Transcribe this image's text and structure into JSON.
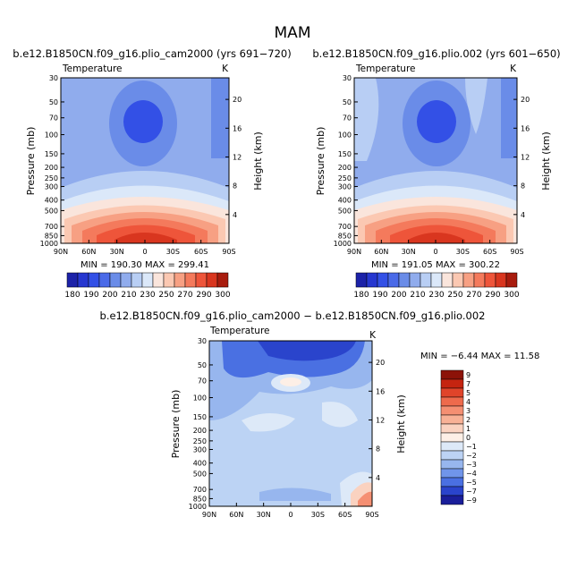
{
  "figure": {
    "title": "MAM"
  },
  "chart_data": [
    {
      "type": "heatmap",
      "title": "b.e12.B1850CN.f09_g16.plio_cam2000 (yrs 691−720)",
      "subtitle": "Temperature",
      "units": "K",
      "ylabel": "Pressure (mb)",
      "ylabel_right": "Height (km)",
      "x_ticks": [
        "90N",
        "60N",
        "30N",
        "0",
        "30S",
        "60S",
        "90S"
      ],
      "y_ticks": [
        "30",
        "50",
        "70",
        "100",
        "150",
        "200",
        "250",
        "300",
        "400",
        "500",
        "700",
        "850",
        "1000"
      ],
      "y_ticks_right": [
        "20",
        "16",
        "12",
        "8",
        "4"
      ],
      "stats": "MIN = 190.30   MAX = 299.41",
      "colorbar_labels": [
        "180",
        "190",
        "200",
        "210",
        "230",
        "250",
        "270",
        "290",
        "300"
      ],
      "colorbar_colors": [
        "#1c22a8",
        "#2637d0",
        "#3350e6",
        "#4a6ae8",
        "#6a8ce8",
        "#90aced",
        "#b8cef4",
        "#dbe8f9",
        "#fae5dc",
        "#fbc8b2",
        "#f7a083",
        "#f47a5c",
        "#ee553a",
        "#d9361f",
        "#a81c0e"
      ],
      "ylim": [
        1000,
        30
      ],
      "data_description": "zonal-mean temperature: minimum near 70–100 mb over the equator, maximum near surface at equator"
    },
    {
      "type": "heatmap",
      "title": "b.e12.B1850CN.f09_g16.plio.002 (yrs 601−650)",
      "subtitle": "Temperature",
      "units": "K",
      "ylabel": "Pressure (mb)",
      "ylabel_right": "Height (km)",
      "x_ticks": [
        "90N",
        "60N",
        "30N",
        "0",
        "30S",
        "60S",
        "90S"
      ],
      "y_ticks": [
        "30",
        "50",
        "70",
        "100",
        "150",
        "200",
        "250",
        "300",
        "400",
        "500",
        "700",
        "850",
        "1000"
      ],
      "y_ticks_right": [
        "20",
        "16",
        "12",
        "8",
        "4"
      ],
      "stats": "MIN = 191.05   MAX = 300.22",
      "colorbar_labels": [
        "180",
        "190",
        "200",
        "210",
        "230",
        "250",
        "270",
        "290",
        "300"
      ],
      "ylim": [
        1000,
        30
      ]
    },
    {
      "type": "heatmap",
      "title": "b.e12.B1850CN.f09_g16.plio_cam2000 − b.e12.B1850CN.f09_g16.plio.002",
      "subtitle": "Temperature",
      "units": "K",
      "ylabel": "Pressure (mb)",
      "ylabel_right": "Height (km)",
      "x_ticks": [
        "90N",
        "60N",
        "30N",
        "0",
        "30S",
        "60S",
        "90S"
      ],
      "y_ticks": [
        "30",
        "50",
        "70",
        "100",
        "150",
        "200",
        "250",
        "300",
        "400",
        "500",
        "700",
        "850",
        "1000"
      ],
      "y_ticks_right": [
        "20",
        "16",
        "12",
        "8",
        "4"
      ],
      "stats": "MIN = −6.44   MAX = 11.58",
      "colorbar_labels": [
        "9",
        "7",
        "5",
        "4",
        "3",
        "2",
        "1",
        "0",
        "−1",
        "−2",
        "−3",
        "−4",
        "−5",
        "−7",
        "−9"
      ],
      "colorbar_colors": [
        "#8c1208",
        "#c52410",
        "#e0442a",
        "#ee6a4c",
        "#f58f72",
        "#f8b196",
        "#fad2c0",
        "#fdefe6",
        "#dde9f8",
        "#bcd3f4",
        "#97b6ee",
        "#7095ea",
        "#4a70e2",
        "#2a44cc",
        "#1a1e9a"
      ],
      "ylim": [
        1000,
        30
      ]
    }
  ]
}
